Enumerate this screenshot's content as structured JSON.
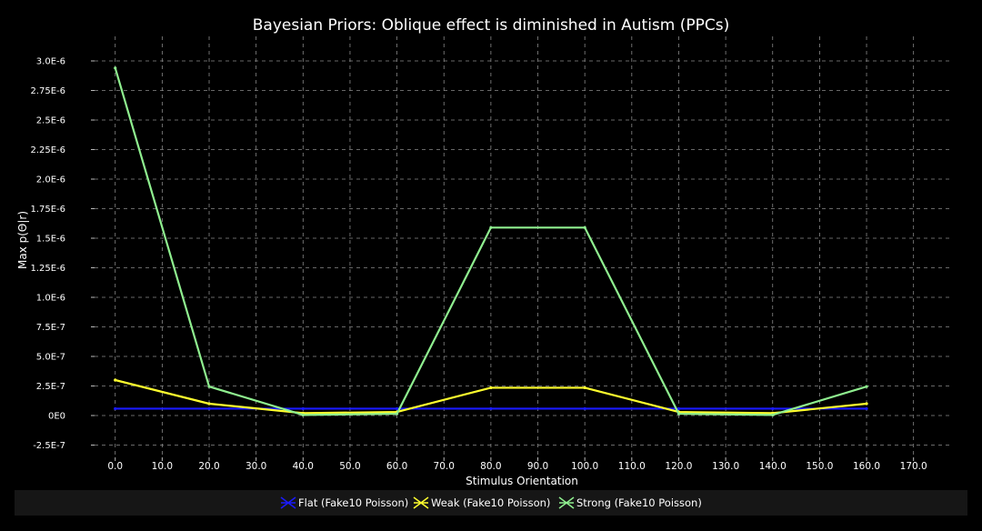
{
  "chart_data": {
    "type": "line",
    "title": "Bayesian Priors: Oblique effect is diminished in Autism (PPCs)",
    "xlabel": "Stimulus Orientation",
    "ylabel": "Max p(Θ|r)",
    "x": [
      0,
      20,
      40,
      60,
      80,
      100,
      120,
      140,
      160
    ],
    "xlim": [
      -4.4,
      178
    ],
    "ylim": [
      -2.5e-07,
      3e-06
    ],
    "x_ticks": [
      "0.0",
      "10.0",
      "20.0",
      "30.0",
      "40.0",
      "50.0",
      "60.0",
      "70.0",
      "80.0",
      "90.0",
      "100.0",
      "110.0",
      "120.0",
      "130.0",
      "140.0",
      "150.0",
      "160.0",
      "170.0"
    ],
    "x_tick_values": [
      0,
      10,
      20,
      30,
      40,
      50,
      60,
      70,
      80,
      90,
      100,
      110,
      120,
      130,
      140,
      150,
      160,
      170
    ],
    "y_ticks": [
      "3.0E-6",
      "2.75E-6",
      "2.5E-6",
      "2.25E-6",
      "2.0E-6",
      "1.75E-6",
      "1.5E-6",
      "1.25E-6",
      "1.0E-6",
      "7.5E-7",
      "5.0E-7",
      "2.5E-7",
      "0E0",
      "-2.5E-7"
    ],
    "y_tick_values": [
      3e-06,
      2.75e-06,
      2.5e-06,
      2.25e-06,
      2e-06,
      1.75e-06,
      1.5e-06,
      1.25e-06,
      1e-06,
      7.5e-07,
      5e-07,
      2.5e-07,
      0,
      -2.5e-07
    ],
    "grid": true,
    "legend_position": "bottom",
    "series": [
      {
        "name": "Flat (Fake10 Poisson)",
        "color": "#1a1aff",
        "values": [
          5.8e-08,
          5.8e-08,
          5.8e-08,
          5.8e-08,
          5.8e-08,
          5.8e-08,
          5.8e-08,
          5.8e-08,
          5.8e-08
        ]
      },
      {
        "name": "Weak (Fake10 Poisson)",
        "color": "#ffff2e",
        "values": [
          3e-07,
          1e-07,
          2e-08,
          3e-08,
          2.35e-07,
          2.35e-07,
          3e-08,
          2e-08,
          1e-07
        ]
      },
      {
        "name": "Strong (Fake10 Poisson)",
        "color": "#8fef8f",
        "values": [
          2.94e-06,
          2.45e-07,
          5e-09,
          1.5e-08,
          1.59e-06,
          1.59e-06,
          1.5e-08,
          5e-09,
          2.45e-07
        ]
      }
    ]
  }
}
